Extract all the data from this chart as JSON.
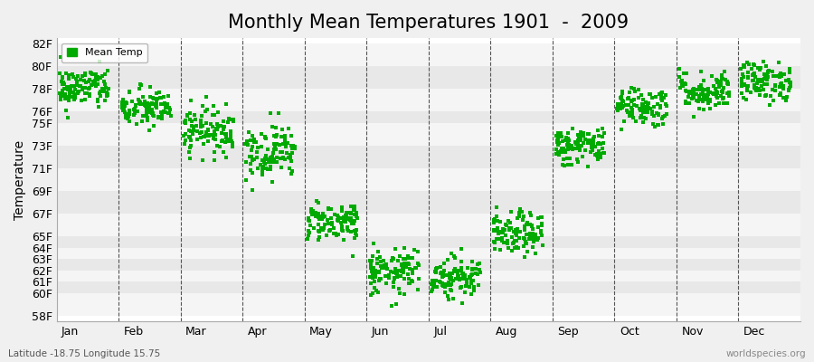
{
  "title": "Monthly Mean Temperatures 1901  -  2009",
  "ylabel": "Temperature",
  "xlabel_bottom": "Latitude -18.75 Longitude 15.75",
  "watermark": "worldspecies.org",
  "legend_label": "Mean Temp",
  "months": [
    "Jan",
    "Feb",
    "Mar",
    "Apr",
    "May",
    "Jun",
    "Jul",
    "Aug",
    "Sep",
    "Oct",
    "Nov",
    "Dec"
  ],
  "month_x_positions": [
    0.08,
    1.08,
    2.08,
    3.08,
    4.08,
    5.08,
    6.08,
    7.08,
    8.08,
    9.08,
    10.08,
    11.08
  ],
  "yticks": [
    58,
    60,
    61,
    62,
    63,
    64,
    65,
    67,
    69,
    71,
    73,
    75,
    76,
    78,
    80,
    82
  ],
  "ytick_labels": [
    "58F",
    "60F",
    "61F",
    "62F",
    "63F",
    "64F",
    "65F",
    "67F",
    "69F",
    "71F",
    "73F",
    "75F",
    "76F",
    "78F",
    "80F",
    "82F"
  ],
  "ylim": [
    57.5,
    82.5
  ],
  "xlim": [
    0,
    12
  ],
  "dot_color": "#00aa00",
  "bg_color": "#f0f0f0",
  "plot_bg": "#ffffff",
  "hband_colors": [
    "#f5f5f5",
    "#e8e8e8"
  ],
  "title_fontsize": 15,
  "axis_label_fontsize": 10,
  "tick_fontsize": 9,
  "monthly_mean_temps": [
    78.1,
    76.3,
    74.4,
    72.5,
    66.3,
    61.8,
    61.5,
    65.2,
    73.0,
    76.5,
    77.8,
    78.7
  ],
  "monthly_spread": [
    0.9,
    0.85,
    1.0,
    1.2,
    0.85,
    1.0,
    0.9,
    0.9,
    0.85,
    0.85,
    0.85,
    0.85
  ],
  "n_years": 109,
  "seed": 42
}
